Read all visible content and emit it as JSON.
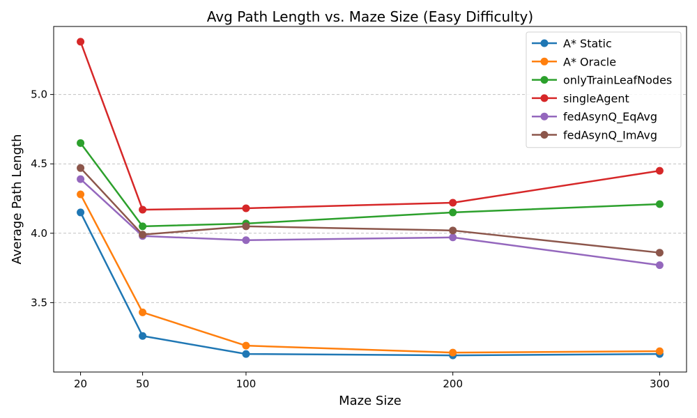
{
  "chart_data": {
    "type": "line",
    "title": "Avg Path Length vs. Maze Size (Easy Difficulty)",
    "xlabel": "Maze Size",
    "ylabel": "Average Path Length",
    "x": [
      20,
      50,
      100,
      200,
      300
    ],
    "x_tick_labels": [
      "20",
      "50",
      "100",
      "200",
      "300"
    ],
    "xlim": [
      7,
      313
    ],
    "ylim": [
      3.0,
      5.49
    ],
    "y_ticks": [
      3.5,
      4.0,
      4.5,
      5.0
    ],
    "y_tick_labels": [
      "3.5",
      "4.0",
      "4.5",
      "5.0"
    ],
    "grid": "horizontal dashed",
    "legend_position": "top-right",
    "series": [
      {
        "name": "A* Static",
        "color": "#1f77b4",
        "values": [
          4.15,
          3.26,
          3.13,
          3.12,
          3.13
        ]
      },
      {
        "name": "A* Oracle",
        "color": "#ff7f0e",
        "values": [
          4.28,
          3.43,
          3.19,
          3.14,
          3.15
        ]
      },
      {
        "name": "onlyTrainLeafNodes",
        "color": "#2ca02c",
        "values": [
          4.65,
          4.05,
          4.07,
          4.15,
          4.21
        ]
      },
      {
        "name": "singleAgent",
        "color": "#d62728",
        "values": [
          5.38,
          4.17,
          4.18,
          4.22,
          4.45
        ]
      },
      {
        "name": "fedAsynQ_EqAvg",
        "color": "#9467bd",
        "values": [
          4.39,
          3.98,
          3.95,
          3.97,
          3.77
        ]
      },
      {
        "name": "fedAsynQ_ImAvg",
        "color": "#8c564b",
        "values": [
          4.47,
          3.99,
          4.05,
          4.02,
          3.86
        ]
      }
    ]
  }
}
